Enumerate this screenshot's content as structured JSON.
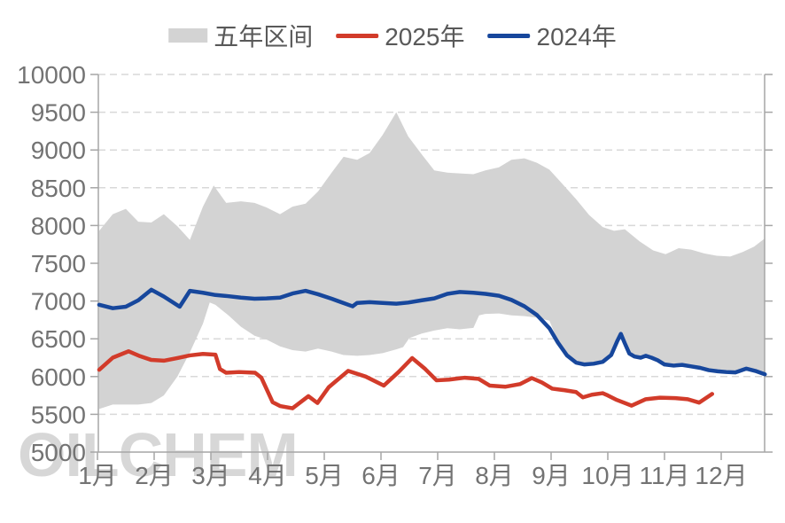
{
  "legend": {
    "items": [
      {
        "label": "五年区间",
        "type": "area",
        "color": "#d3d3d3"
      },
      {
        "label": "2025年",
        "type": "line",
        "color": "#d23b2a"
      },
      {
        "label": "2024年",
        "type": "line",
        "color": "#17479c"
      }
    ]
  },
  "watermark": "OILCHEM",
  "colors": {
    "band": "#d3d3d3",
    "series_2025": "#d23b2a",
    "series_2024": "#17479c",
    "grid": "#d9d9d9",
    "axis": "#a6a6a6",
    "tick_label": "#737373",
    "legend_text": "#595959",
    "watermark": "#bfbfbf"
  },
  "chart_data": {
    "type": "line",
    "title": "",
    "xlabel": "",
    "ylabel": "",
    "x_labels": [
      "1月",
      "2月",
      "3月",
      "4月",
      "5月",
      "6月",
      "7月",
      "8月",
      "9月",
      "10月",
      "11月",
      "12月"
    ],
    "y_ticks": [
      5000,
      5500,
      6000,
      6500,
      7000,
      7500,
      8000,
      8500,
      9000,
      9500,
      10000
    ],
    "ylim": [
      5000,
      10000
    ],
    "xlim_months": [
      1.0,
      12.77
    ],
    "grid": "horizontal-dashed",
    "legend_position": "top-center",
    "band": {
      "name": "五年区间",
      "color": "#d3d3d3",
      "top": [
        [
          1.03,
          7930
        ],
        [
          1.27,
          8150
        ],
        [
          1.5,
          8220
        ],
        [
          1.72,
          8050
        ],
        [
          1.95,
          8040
        ],
        [
          2.17,
          8150
        ],
        [
          2.41,
          7990
        ],
        [
          2.63,
          7810
        ],
        [
          2.86,
          8250
        ],
        [
          3.05,
          8530
        ],
        [
          3.27,
          8300
        ],
        [
          3.53,
          8320
        ],
        [
          3.77,
          8300
        ],
        [
          3.98,
          8240
        ],
        [
          4.22,
          8150
        ],
        [
          4.44,
          8250
        ],
        [
          4.67,
          8290
        ],
        [
          4.89,
          8450
        ],
        [
          5.13,
          8700
        ],
        [
          5.34,
          8910
        ],
        [
          5.58,
          8870
        ],
        [
          5.8,
          8960
        ],
        [
          6.03,
          9200
        ],
        [
          6.27,
          9500
        ],
        [
          6.48,
          9180
        ],
        [
          6.72,
          8940
        ],
        [
          6.94,
          8730
        ],
        [
          7.17,
          8700
        ],
        [
          7.39,
          8690
        ],
        [
          7.63,
          8680
        ],
        [
          7.84,
          8730
        ],
        [
          8.08,
          8770
        ],
        [
          8.3,
          8870
        ],
        [
          8.53,
          8890
        ],
        [
          8.75,
          8830
        ],
        [
          8.97,
          8740
        ],
        [
          9.2,
          8550
        ],
        [
          9.44,
          8350
        ],
        [
          9.67,
          8140
        ],
        [
          9.91,
          7980
        ],
        [
          10.11,
          7930
        ],
        [
          10.3,
          7950
        ],
        [
          10.56,
          7790
        ],
        [
          10.8,
          7670
        ],
        [
          11.02,
          7620
        ],
        [
          11.25,
          7700
        ],
        [
          11.47,
          7680
        ],
        [
          11.7,
          7630
        ],
        [
          11.92,
          7600
        ],
        [
          12.16,
          7590
        ],
        [
          12.38,
          7650
        ],
        [
          12.58,
          7720
        ],
        [
          12.77,
          7830
        ]
      ],
      "bottom": [
        [
          1.03,
          5570
        ],
        [
          1.27,
          5630
        ],
        [
          1.5,
          5630
        ],
        [
          1.72,
          5630
        ],
        [
          1.95,
          5650
        ],
        [
          2.17,
          5750
        ],
        [
          2.41,
          6000
        ],
        [
          2.63,
          6320
        ],
        [
          2.86,
          6700
        ],
        [
          2.98,
          6980
        ],
        [
          3.08,
          6950
        ],
        [
          3.31,
          6810
        ],
        [
          3.53,
          6660
        ],
        [
          3.77,
          6540
        ],
        [
          3.98,
          6490
        ],
        [
          4.22,
          6400
        ],
        [
          4.44,
          6350
        ],
        [
          4.67,
          6330
        ],
        [
          4.89,
          6370
        ],
        [
          5.13,
          6330
        ],
        [
          5.34,
          6285
        ],
        [
          5.58,
          6275
        ],
        [
          5.8,
          6285
        ],
        [
          6.03,
          6310
        ],
        [
          6.27,
          6360
        ],
        [
          6.39,
          6390
        ],
        [
          6.5,
          6510
        ],
        [
          6.72,
          6570
        ],
        [
          6.94,
          6610
        ],
        [
          7.17,
          6640
        ],
        [
          7.39,
          6625
        ],
        [
          7.63,
          6645
        ],
        [
          7.73,
          6810
        ],
        [
          7.84,
          6830
        ],
        [
          8.08,
          6835
        ],
        [
          8.3,
          6810
        ],
        [
          8.53,
          6800
        ],
        [
          8.75,
          6780
        ],
        [
          8.97,
          6740
        ],
        [
          9.12,
          6470
        ],
        [
          9.28,
          6300
        ],
        [
          9.44,
          6210
        ],
        [
          9.59,
          6180
        ],
        [
          9.75,
          6190
        ],
        [
          9.91,
          6215
        ],
        [
          10.06,
          6300
        ],
        [
          10.17,
          6490
        ],
        [
          10.23,
          6580
        ],
        [
          10.3,
          6450
        ],
        [
          10.38,
          6315
        ],
        [
          10.47,
          6275
        ],
        [
          10.58,
          6265
        ],
        [
          10.67,
          6290
        ],
        [
          10.77,
          6265
        ],
        [
          10.88,
          6230
        ],
        [
          11.0,
          6175
        ],
        [
          11.16,
          6160
        ],
        [
          11.31,
          6170
        ],
        [
          11.47,
          6150
        ],
        [
          11.63,
          6130
        ],
        [
          11.78,
          6100
        ],
        [
          11.94,
          6085
        ],
        [
          12.09,
          6075
        ],
        [
          12.25,
          6070
        ],
        [
          12.44,
          6120
        ],
        [
          12.6,
          6090
        ],
        [
          12.77,
          6045
        ]
      ]
    },
    "series": [
      {
        "name": "2025年",
        "color": "#d23b2a",
        "points": [
          [
            1.03,
            6090
          ],
          [
            1.27,
            6250
          ],
          [
            1.55,
            6335
          ],
          [
            1.75,
            6270
          ],
          [
            1.95,
            6220
          ],
          [
            2.17,
            6210
          ],
          [
            2.41,
            6245
          ],
          [
            2.63,
            6280
          ],
          [
            2.86,
            6300
          ],
          [
            3.08,
            6290
          ],
          [
            3.16,
            6100
          ],
          [
            3.27,
            6050
          ],
          [
            3.5,
            6060
          ],
          [
            3.78,
            6050
          ],
          [
            3.89,
            5985
          ],
          [
            4.09,
            5660
          ],
          [
            4.22,
            5610
          ],
          [
            4.44,
            5580
          ],
          [
            4.72,
            5740
          ],
          [
            4.88,
            5650
          ],
          [
            5.08,
            5860
          ],
          [
            5.42,
            6075
          ],
          [
            5.73,
            6000
          ],
          [
            6.05,
            5880
          ],
          [
            6.31,
            6060
          ],
          [
            6.55,
            6245
          ],
          [
            6.78,
            6100
          ],
          [
            6.98,
            5950
          ],
          [
            7.2,
            5960
          ],
          [
            7.48,
            5985
          ],
          [
            7.72,
            5970
          ],
          [
            7.92,
            5880
          ],
          [
            8.19,
            5865
          ],
          [
            8.45,
            5900
          ],
          [
            8.66,
            5980
          ],
          [
            8.84,
            5920
          ],
          [
            9.02,
            5840
          ],
          [
            9.23,
            5820
          ],
          [
            9.44,
            5795
          ],
          [
            9.56,
            5725
          ],
          [
            9.72,
            5760
          ],
          [
            9.91,
            5780
          ],
          [
            10.0,
            5750
          ],
          [
            10.16,
            5690
          ],
          [
            10.42,
            5615
          ],
          [
            10.67,
            5700
          ],
          [
            10.92,
            5720
          ],
          [
            11.19,
            5715
          ],
          [
            11.41,
            5700
          ],
          [
            11.61,
            5655
          ],
          [
            11.84,
            5770
          ]
        ]
      },
      {
        "name": "2024年",
        "color": "#17479c",
        "points": [
          [
            1.03,
            6950
          ],
          [
            1.27,
            6905
          ],
          [
            1.5,
            6925
          ],
          [
            1.72,
            7010
          ],
          [
            1.95,
            7150
          ],
          [
            2.17,
            7060
          ],
          [
            2.45,
            6925
          ],
          [
            2.63,
            7135
          ],
          [
            2.86,
            7110
          ],
          [
            3.08,
            7080
          ],
          [
            3.3,
            7065
          ],
          [
            3.53,
            7045
          ],
          [
            3.77,
            7030
          ],
          [
            3.98,
            7035
          ],
          [
            4.22,
            7045
          ],
          [
            4.44,
            7100
          ],
          [
            4.67,
            7135
          ],
          [
            4.89,
            7090
          ],
          [
            5.13,
            7030
          ],
          [
            5.5,
            6930
          ],
          [
            5.58,
            6975
          ],
          [
            5.8,
            6985
          ],
          [
            6.03,
            6975
          ],
          [
            6.27,
            6965
          ],
          [
            6.48,
            6980
          ],
          [
            6.72,
            7010
          ],
          [
            6.94,
            7035
          ],
          [
            7.17,
            7095
          ],
          [
            7.39,
            7120
          ],
          [
            7.63,
            7110
          ],
          [
            7.84,
            7095
          ],
          [
            8.08,
            7070
          ],
          [
            8.3,
            7015
          ],
          [
            8.53,
            6930
          ],
          [
            8.75,
            6815
          ],
          [
            8.97,
            6640
          ],
          [
            9.12,
            6450
          ],
          [
            9.28,
            6280
          ],
          [
            9.44,
            6185
          ],
          [
            9.59,
            6160
          ],
          [
            9.75,
            6170
          ],
          [
            9.91,
            6195
          ],
          [
            10.06,
            6285
          ],
          [
            10.17,
            6475
          ],
          [
            10.23,
            6565
          ],
          [
            10.3,
            6440
          ],
          [
            10.38,
            6305
          ],
          [
            10.47,
            6265
          ],
          [
            10.58,
            6250
          ],
          [
            10.67,
            6275
          ],
          [
            10.77,
            6250
          ],
          [
            10.88,
            6215
          ],
          [
            11.0,
            6160
          ],
          [
            11.16,
            6145
          ],
          [
            11.31,
            6155
          ],
          [
            11.47,
            6135
          ],
          [
            11.63,
            6115
          ],
          [
            11.78,
            6085
          ],
          [
            11.94,
            6070
          ],
          [
            12.09,
            6060
          ],
          [
            12.25,
            6055
          ],
          [
            12.44,
            6105
          ],
          [
            12.6,
            6075
          ],
          [
            12.77,
            6030
          ]
        ]
      }
    ]
  }
}
